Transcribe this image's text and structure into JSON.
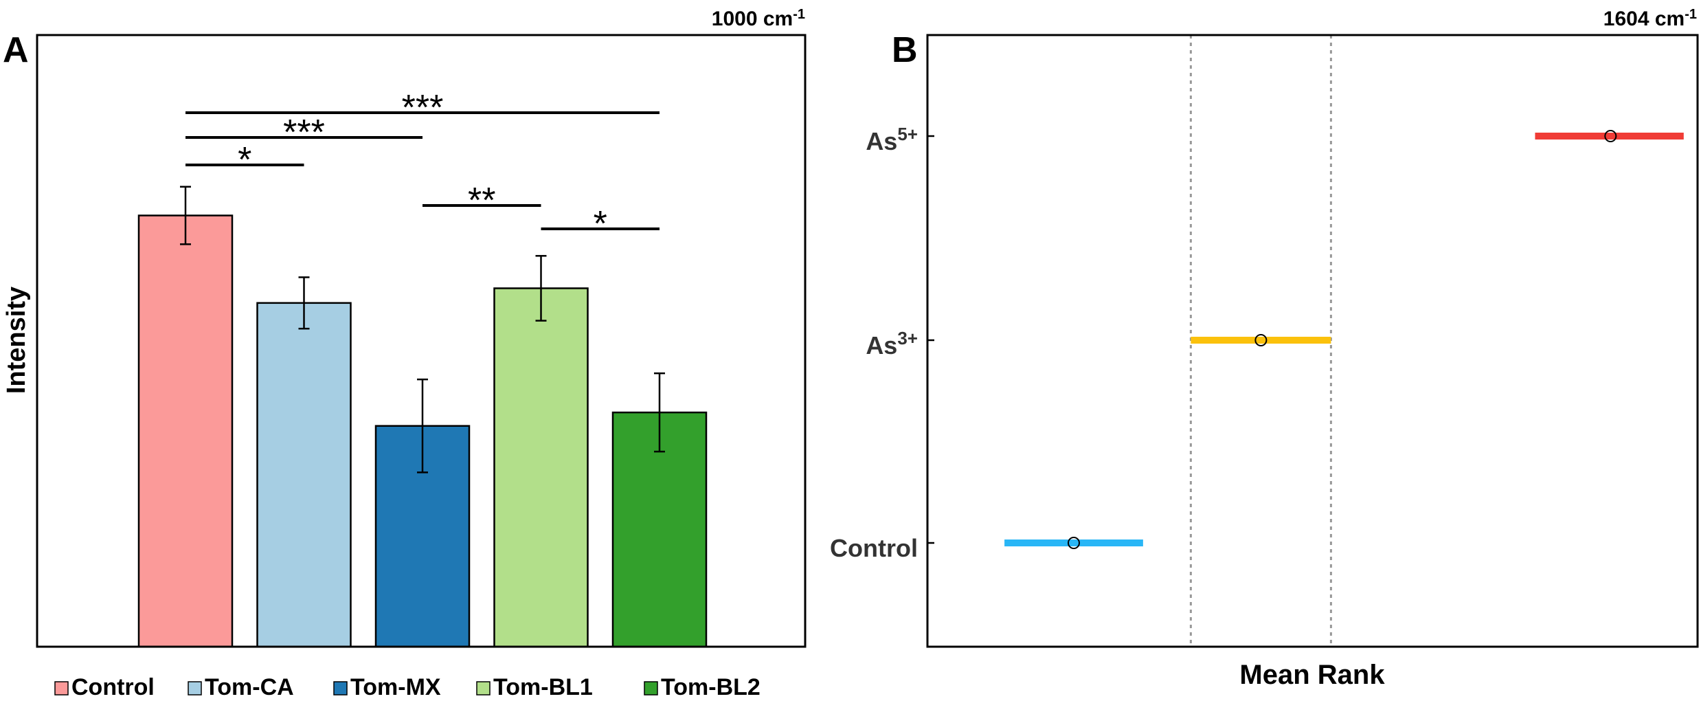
{
  "colors": {
    "Control": "#fb9a99",
    "Tom-CA": "#a6cee3",
    "Tom-MX": "#1f78b4",
    "Tom-BL1": "#b2df8a",
    "Tom-BL2": "#33a02c",
    "panelB_Control": "#29b6f6",
    "panelB_As3": "#fbc10c",
    "panelB_As5": "#f03c36",
    "axis": "#000000",
    "guide": "#999999"
  },
  "chart_data": [
    {
      "type": "bar",
      "panel_label": "A",
      "title": "1000 cm",
      "title_sup": "-1",
      "xlabel": "",
      "ylabel": "Intensity",
      "ylim": [
        0,
        100
      ],
      "categories": [
        "Control",
        "Tom-CA",
        "Tom-MX",
        "Tom-BL1",
        "Tom-BL2"
      ],
      "values": [
        70.5,
        56.2,
        36.1,
        58.6,
        38.3
      ],
      "errors": [
        4.7,
        4.2,
        7.6,
        5.3,
        6.4
      ],
      "legend": [
        "Control",
        "Tom-CA",
        "Tom-MX",
        "Tom-BL1",
        "Tom-BL2"
      ],
      "legend_position": "bottom",
      "significance": [
        {
          "from": "Control",
          "to": "Tom-CA",
          "label": "*"
        },
        {
          "from": "Control",
          "to": "Tom-MX",
          "label": "***"
        },
        {
          "from": "Control",
          "to": "Tom-BL2",
          "label": "***"
        },
        {
          "from": "Tom-MX",
          "to": "Tom-BL1",
          "label": "**"
        },
        {
          "from": "Tom-BL1",
          "to": "Tom-BL2",
          "label": "*"
        }
      ]
    },
    {
      "type": "scatter",
      "subtype": "multiple-comparison-interval",
      "panel_label": "B",
      "title": "1604 cm",
      "title_sup": "-1",
      "xlabel": "Mean Rank",
      "ylabel": "",
      "xlim": [
        0,
        100
      ],
      "categories": [
        "Control",
        "As3+",
        "As5+"
      ],
      "category_labels": [
        {
          "base": "Control",
          "sup": ""
        },
        {
          "base": "As",
          "sup": "3+"
        },
        {
          "base": "As",
          "sup": "5+"
        }
      ],
      "means": [
        19,
        43.3,
        88.7
      ],
      "lower": [
        10,
        34.2,
        78.9
      ],
      "upper": [
        28,
        52.4,
        98.2
      ],
      "reference_lines": [
        34.2,
        52.4
      ]
    }
  ]
}
